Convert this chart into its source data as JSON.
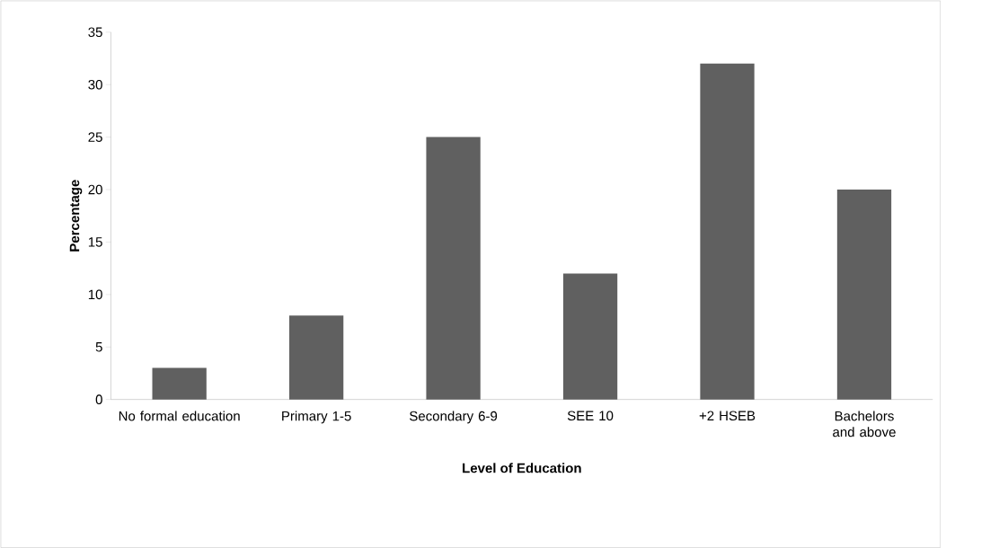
{
  "chart_data": {
    "type": "bar",
    "xlabel": "Level of Education",
    "ylabel": "Percentage",
    "categories": [
      "No formal education",
      "Primary 1-5",
      "Secondary 6-9",
      "SEE 10",
      "+2 HSEB",
      "Bachelors and above"
    ],
    "values": [
      3,
      8,
      25,
      12,
      32,
      20
    ],
    "color": "#606060",
    "ylim": [
      0,
      35
    ],
    "yticks": [
      0,
      5,
      10,
      15,
      20,
      25,
      30,
      35
    ]
  }
}
